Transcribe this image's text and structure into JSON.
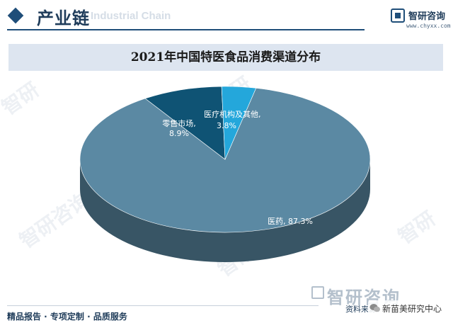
{
  "header": {
    "title": "产业链",
    "background_text": "Industrial Chain",
    "brand_name": "智研咨询",
    "brand_url": "www.chyxx.com"
  },
  "chart_data": {
    "type": "pie",
    "title": "2021年中国特医食品消费渠道分布",
    "slices": [
      {
        "label": "医药",
        "value": 87.3,
        "display": "医药, 87.3%",
        "color": "#5b89a3"
      },
      {
        "label": "零售市场",
        "value": 8.9,
        "display_line1": "零售市场,",
        "display_line2": "8.9%",
        "color": "#0f5374"
      },
      {
        "label": "医疗机构及其他",
        "value": 3.8,
        "display_line1": "医疗机构及其他,",
        "display_line2": "3.8%",
        "color": "#24a7db"
      }
    ],
    "legend": "none",
    "style": "3d"
  },
  "footer": {
    "slogan": "精品报告 · 专项定制 · 品质服务",
    "source": "资料来源：",
    "watermark_brand": "智研咨询",
    "wechat_name": "新苗美研究中心"
  }
}
